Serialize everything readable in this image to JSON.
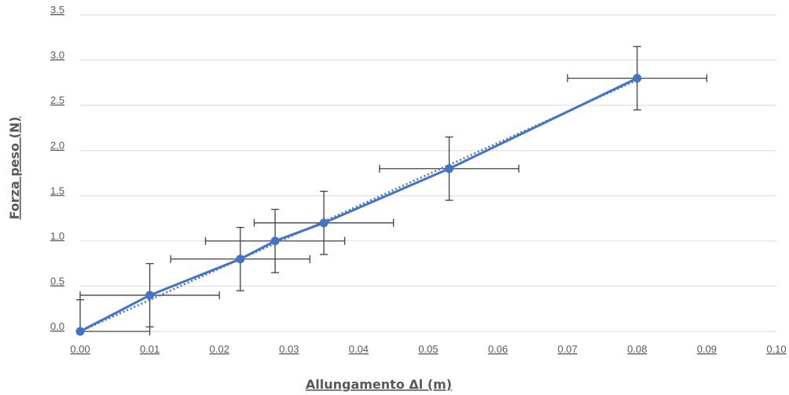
{
  "chart_data": {
    "type": "scatter",
    "title": "",
    "xlabel": "Allungamento Δl (m)",
    "ylabel": "Forza peso (N)",
    "xlim": [
      0,
      0.1
    ],
    "ylim": [
      0,
      3.5
    ],
    "x_ticks": [
      "0.00",
      "0.01",
      "0.02",
      "0.03",
      "0.04",
      "0.05",
      "0.06",
      "0.07",
      "0.08",
      "0.09",
      "0.10"
    ],
    "y_ticks": [
      "0.0",
      "0.5",
      "1.0",
      "1.5",
      "2.0",
      "2.5",
      "3.0",
      "3.5"
    ],
    "grid": "horizontal",
    "legend": "none",
    "series": [
      {
        "x": [
          0.0,
          0.01,
          0.023,
          0.028,
          0.035,
          0.053,
          0.08
        ],
        "y": [
          0.0,
          0.4,
          0.8,
          1.0,
          1.2,
          1.8,
          2.8
        ],
        "x_error": [
          0.01,
          0.01,
          0.01,
          0.01,
          0.01,
          0.01,
          0.01
        ],
        "y_error": [
          0.35,
          0.35,
          0.35,
          0.35,
          0.35,
          0.35,
          0.35
        ],
        "color": "#4472c4"
      }
    ],
    "trendline": {
      "type": "linear",
      "style": "dotted",
      "x": [
        0.0,
        0.08
      ],
      "y": [
        0.0,
        2.78
      ],
      "color": "#4472c4"
    },
    "error_bar_color": "#404040",
    "grid_color": "#d9d9d9",
    "text_color": "#595959"
  }
}
